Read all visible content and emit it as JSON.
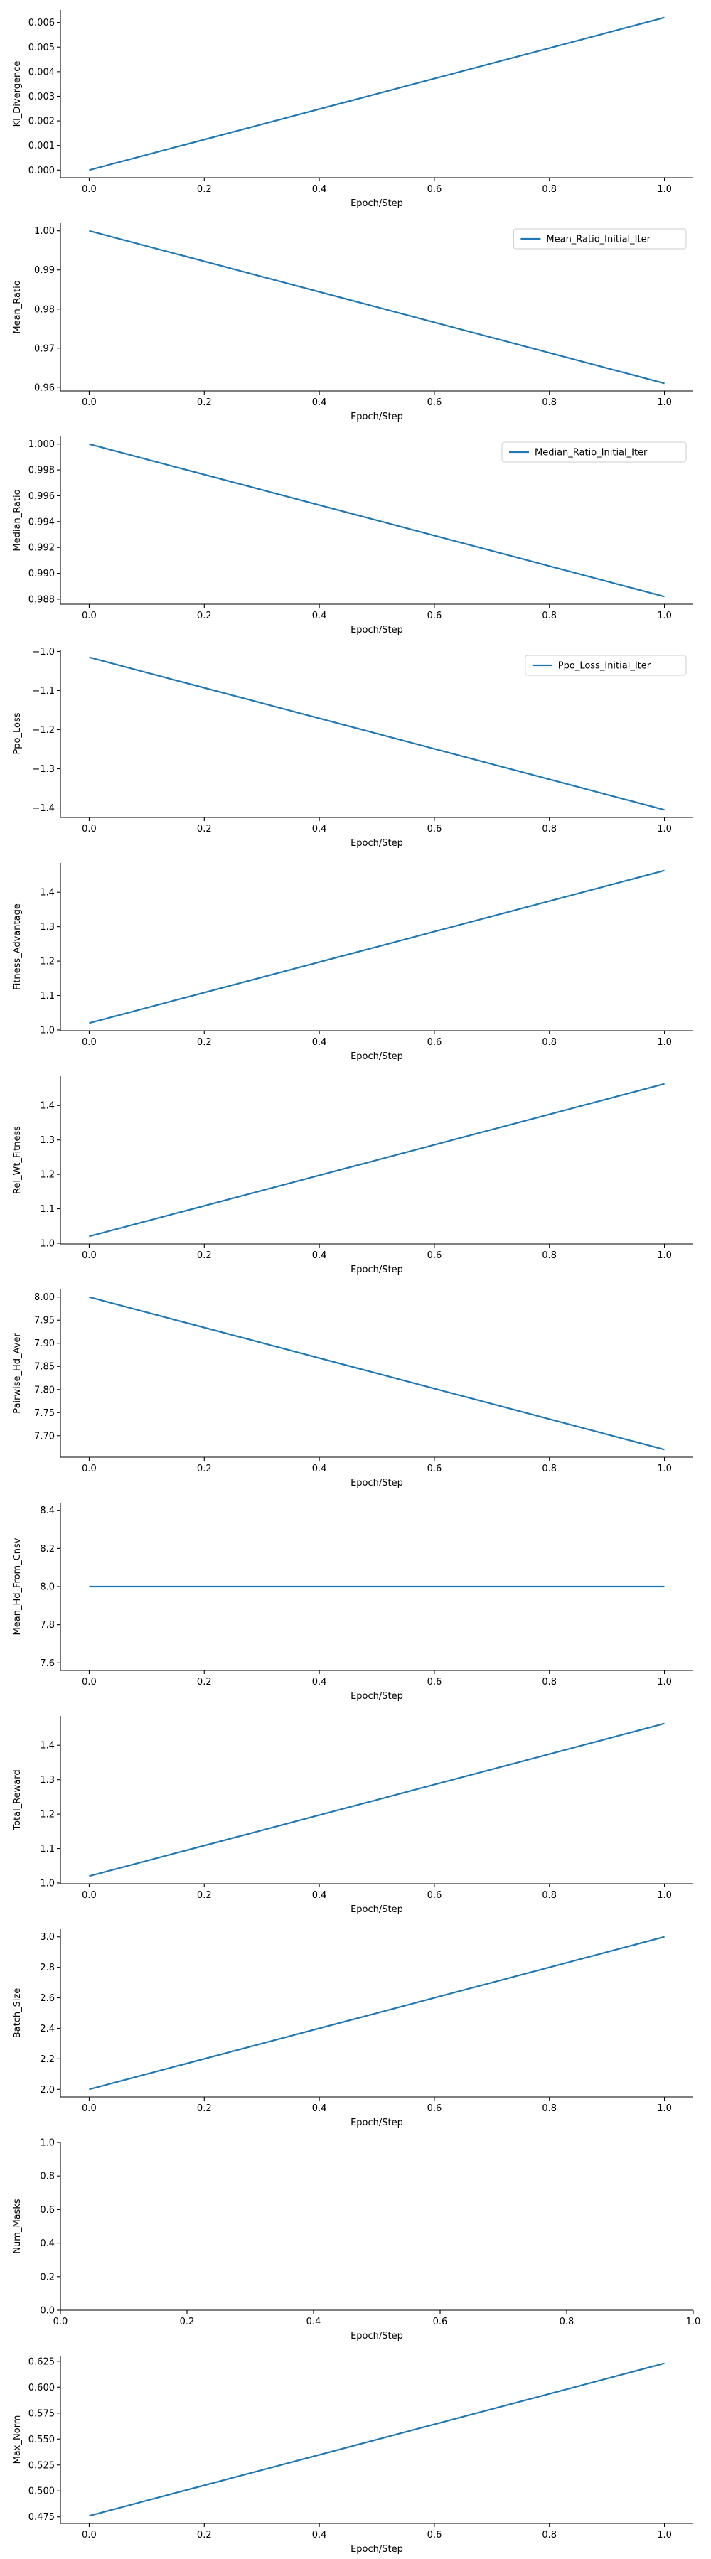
{
  "series_color": "#1f77b4",
  "chart_data": [
    {
      "type": "line",
      "ylabel": "Kl_Divergence",
      "xlabel": "Epoch/Step",
      "x": [
        0.0,
        1.0
      ],
      "series": [
        {
          "values": [
            0.0,
            0.0062
          ]
        }
      ],
      "legend": null,
      "xlim": [
        -0.05,
        1.05
      ],
      "ylim": [
        -0.00031,
        0.00651
      ],
      "yticks": [
        0.0,
        0.001,
        0.002,
        0.003,
        0.004,
        0.005,
        0.006
      ],
      "yticklabels": [
        "0.000",
        "0.001",
        "0.002",
        "0.003",
        "0.004",
        "0.005",
        "0.006"
      ],
      "xticks": [
        0.0,
        0.2,
        0.4,
        0.6,
        0.8,
        1.0
      ],
      "xticklabels": [
        "0.0",
        "0.2",
        "0.4",
        "0.6",
        "0.8",
        "1.0"
      ]
    },
    {
      "type": "line",
      "ylabel": "Mean_Ratio",
      "xlabel": "Epoch/Step",
      "x": [
        0.0,
        1.0
      ],
      "series": [
        {
          "name": "Mean_Ratio_Initial_Iter",
          "values": [
            1.0,
            0.961
          ]
        }
      ],
      "legend": "top-right",
      "xlim": [
        -0.05,
        1.05
      ],
      "ylim": [
        0.95905,
        1.00195
      ],
      "yticks": [
        0.96,
        0.97,
        0.98,
        0.99,
        1.0
      ],
      "yticklabels": [
        "0.96",
        "0.97",
        "0.98",
        "0.99",
        "1.00"
      ],
      "xticks": [
        0.0,
        0.2,
        0.4,
        0.6,
        0.8,
        1.0
      ],
      "xticklabels": [
        "0.0",
        "0.2",
        "0.4",
        "0.6",
        "0.8",
        "1.0"
      ]
    },
    {
      "type": "line",
      "ylabel": "Median_Ratio",
      "xlabel": "Epoch/Step",
      "x": [
        0.0,
        1.0
      ],
      "series": [
        {
          "name": "Median_Ratio_Initial_Iter",
          "values": [
            1.0,
            0.9882
          ]
        }
      ],
      "legend": "top-right",
      "xlim": [
        -0.05,
        1.05
      ],
      "ylim": [
        0.98761,
        1.00059
      ],
      "yticks": [
        0.988,
        0.99,
        0.992,
        0.994,
        0.996,
        0.998,
        1.0
      ],
      "yticklabels": [
        "0.988",
        "0.990",
        "0.992",
        "0.994",
        "0.996",
        "0.998",
        "1.000"
      ],
      "xticks": [
        0.0,
        0.2,
        0.4,
        0.6,
        0.8,
        1.0
      ],
      "xticklabels": [
        "0.0",
        "0.2",
        "0.4",
        "0.6",
        "0.8",
        "1.0"
      ]
    },
    {
      "type": "line",
      "ylabel": "Ppo_Loss",
      "xlabel": "Epoch/Step",
      "x": [
        0.0,
        1.0
      ],
      "series": [
        {
          "name": "Ppo_Loss_Initial_Iter",
          "values": [
            -1.015,
            -1.405
          ]
        }
      ],
      "legend": "top-right",
      "xlim": [
        -0.05,
        1.05
      ],
      "ylim": [
        -1.4245,
        -0.9955
      ],
      "yticks": [
        -1.4,
        -1.3,
        -1.2,
        -1.1,
        -1.0
      ],
      "yticklabels": [
        "−1.4",
        "−1.3",
        "−1.2",
        "−1.1",
        "−1.0"
      ],
      "xticks": [
        0.0,
        0.2,
        0.4,
        0.6,
        0.8,
        1.0
      ],
      "xticklabels": [
        "0.0",
        "0.2",
        "0.4",
        "0.6",
        "0.8",
        "1.0"
      ]
    },
    {
      "type": "line",
      "ylabel": "Fitness_Advantage",
      "xlabel": "Epoch/Step",
      "x": [
        0.0,
        1.0
      ],
      "series": [
        {
          "values": [
            1.02,
            1.463
          ]
        }
      ],
      "legend": null,
      "xlim": [
        -0.05,
        1.05
      ],
      "ylim": [
        0.99785,
        1.48515
      ],
      "yticks": [
        1.0,
        1.1,
        1.2,
        1.3,
        1.4
      ],
      "yticklabels": [
        "1.0",
        "1.1",
        "1.2",
        "1.3",
        "1.4"
      ],
      "xticks": [
        0.0,
        0.2,
        0.4,
        0.6,
        0.8,
        1.0
      ],
      "xticklabels": [
        "0.0",
        "0.2",
        "0.4",
        "0.6",
        "0.8",
        "1.0"
      ]
    },
    {
      "type": "line",
      "ylabel": "Rel_Wt_Fitness",
      "xlabel": "Epoch/Step",
      "x": [
        0.0,
        1.0
      ],
      "series": [
        {
          "values": [
            1.02,
            1.463
          ]
        }
      ],
      "legend": null,
      "xlim": [
        -0.05,
        1.05
      ],
      "ylim": [
        0.99785,
        1.48515
      ],
      "yticks": [
        1.0,
        1.1,
        1.2,
        1.3,
        1.4
      ],
      "yticklabels": [
        "1.0",
        "1.1",
        "1.2",
        "1.3",
        "1.4"
      ],
      "xticks": [
        0.0,
        0.2,
        0.4,
        0.6,
        0.8,
        1.0
      ],
      "xticklabels": [
        "0.0",
        "0.2",
        "0.4",
        "0.6",
        "0.8",
        "1.0"
      ]
    },
    {
      "type": "line",
      "ylabel": "Pairwise_Hd_Aver",
      "xlabel": "Epoch/Step",
      "x": [
        0.0,
        1.0
      ],
      "series": [
        {
          "values": [
            8.0,
            7.67
          ]
        }
      ],
      "legend": null,
      "xlim": [
        -0.05,
        1.05
      ],
      "ylim": [
        7.6535,
        8.0165
      ],
      "yticks": [
        7.7,
        7.75,
        7.8,
        7.85,
        7.9,
        7.95,
        8.0
      ],
      "yticklabels": [
        "7.70",
        "7.75",
        "7.80",
        "7.85",
        "7.90",
        "7.95",
        "8.00"
      ],
      "xticks": [
        0.0,
        0.2,
        0.4,
        0.6,
        0.8,
        1.0
      ],
      "xticklabels": [
        "0.0",
        "0.2",
        "0.4",
        "0.6",
        "0.8",
        "1.0"
      ]
    },
    {
      "type": "line",
      "ylabel": "Mean_Hd_From_Cnsv",
      "xlabel": "Epoch/Step",
      "x": [
        0.0,
        1.0
      ],
      "series": [
        {
          "values": [
            8.0,
            8.0
          ]
        }
      ],
      "legend": null,
      "xlim": [
        -0.05,
        1.05
      ],
      "ylim": [
        7.56,
        8.44
      ],
      "yticks": [
        7.6,
        7.8,
        8.0,
        8.2,
        8.4
      ],
      "yticklabels": [
        "7.6",
        "7.8",
        "8.0",
        "8.2",
        "8.4"
      ],
      "xticks": [
        0.0,
        0.2,
        0.4,
        0.6,
        0.8,
        1.0
      ],
      "xticklabels": [
        "0.0",
        "0.2",
        "0.4",
        "0.6",
        "0.8",
        "1.0"
      ]
    },
    {
      "type": "line",
      "ylabel": "Total_Reward",
      "xlabel": "Epoch/Step",
      "x": [
        0.0,
        1.0
      ],
      "series": [
        {
          "values": [
            1.02,
            1.463
          ]
        }
      ],
      "legend": null,
      "xlim": [
        -0.05,
        1.05
      ],
      "ylim": [
        0.99785,
        1.48515
      ],
      "yticks": [
        1.0,
        1.1,
        1.2,
        1.3,
        1.4
      ],
      "yticklabels": [
        "1.0",
        "1.1",
        "1.2",
        "1.3",
        "1.4"
      ],
      "xticks": [
        0.0,
        0.2,
        0.4,
        0.6,
        0.8,
        1.0
      ],
      "xticklabels": [
        "0.0",
        "0.2",
        "0.4",
        "0.6",
        "0.8",
        "1.0"
      ]
    },
    {
      "type": "line",
      "ylabel": "Batch_Size",
      "xlabel": "Epoch/Step",
      "x": [
        0.0,
        1.0
      ],
      "series": [
        {
          "values": [
            2.0,
            3.0
          ]
        }
      ],
      "legend": null,
      "xlim": [
        -0.05,
        1.05
      ],
      "ylim": [
        1.95,
        3.05
      ],
      "yticks": [
        2.0,
        2.2,
        2.4,
        2.6,
        2.8,
        3.0
      ],
      "yticklabels": [
        "2.0",
        "2.2",
        "2.4",
        "2.6",
        "2.8",
        "3.0"
      ],
      "xticks": [
        0.0,
        0.2,
        0.4,
        0.6,
        0.8,
        1.0
      ],
      "xticklabels": [
        "0.0",
        "0.2",
        "0.4",
        "0.6",
        "0.8",
        "1.0"
      ]
    },
    {
      "type": "line",
      "ylabel": "Num_Masks",
      "xlabel": "Epoch/Step",
      "x": [],
      "series": [],
      "legend": null,
      "xlim": [
        0.0,
        1.0
      ],
      "ylim": [
        0.0,
        1.0
      ],
      "yticks": [
        0.0,
        0.2,
        0.4,
        0.6,
        0.8,
        1.0
      ],
      "yticklabels": [
        "0.0",
        "0.2",
        "0.4",
        "0.6",
        "0.8",
        "1.0"
      ],
      "xticks": [
        0.0,
        0.2,
        0.4,
        0.6,
        0.8,
        1.0
      ],
      "xticklabels": [
        "0.0",
        "0.2",
        "0.4",
        "0.6",
        "0.8",
        "1.0"
      ]
    },
    {
      "type": "line",
      "ylabel": "Max_Norm",
      "xlabel": "Epoch/Step",
      "x": [
        0.0,
        1.0
      ],
      "series": [
        {
          "values": [
            0.476,
            0.623
          ]
        }
      ],
      "legend": null,
      "xlim": [
        -0.05,
        1.05
      ],
      "ylim": [
        0.46865,
        0.63035
      ],
      "yticks": [
        0.475,
        0.5,
        0.525,
        0.55,
        0.575,
        0.6,
        0.625
      ],
      "yticklabels": [
        "0.475",
        "0.500",
        "0.525",
        "0.550",
        "0.575",
        "0.600",
        "0.625"
      ],
      "xticks": [
        0.0,
        0.2,
        0.4,
        0.6,
        0.8,
        1.0
      ],
      "xticklabels": [
        "0.0",
        "0.2",
        "0.4",
        "0.6",
        "0.8",
        "1.0"
      ]
    }
  ]
}
